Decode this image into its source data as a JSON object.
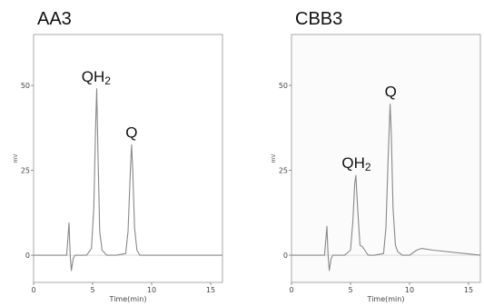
{
  "chart_data": [
    {
      "type": "line",
      "title": "AA3",
      "xlabel": "Time(min)",
      "ylabel": "mV",
      "xlim": [
        0,
        16
      ],
      "ylim": [
        -8,
        65
      ],
      "xticks": [
        0,
        5,
        10,
        15
      ],
      "yticks": [
        0,
        25,
        50
      ],
      "grid": false,
      "annotations": [
        {
          "text": "QH2",
          "x": 5.3,
          "y": 49
        },
        {
          "text": "Q",
          "x": 8.3,
          "y": 32.5
        }
      ],
      "series": [
        {
          "x": [
            0,
            2.8,
            3.0,
            3.1,
            3.2,
            3.35,
            3.5,
            3.8,
            4.5,
            4.9,
            5.1,
            5.25,
            5.35,
            5.45,
            5.6,
            5.8,
            6.2,
            7.0,
            7.8,
            8.0,
            8.2,
            8.3,
            8.4,
            8.55,
            8.75,
            9.0,
            10.0,
            16
          ],
          "y": [
            0,
            0,
            9.5,
            0,
            -4.5,
            -1,
            0,
            0,
            0,
            2,
            14,
            38,
            49,
            30,
            7,
            1.5,
            0,
            0,
            0.5,
            7,
            25,
            32.5,
            25,
            8,
            1.5,
            0,
            0,
            0
          ]
        }
      ]
    },
    {
      "type": "line",
      "title": "CBB3",
      "xlabel": "Time(min)",
      "ylabel": "mV",
      "xlim": [
        0,
        16
      ],
      "ylim": [
        -8,
        65
      ],
      "xticks": [
        0,
        5,
        10,
        15
      ],
      "yticks": [
        0,
        25,
        50
      ],
      "grid": false,
      "annotations": [
        {
          "text": "QH2",
          "x": 5.5,
          "y": 23.5
        },
        {
          "text": "Q",
          "x": 8.4,
          "y": 44.5
        }
      ],
      "series": [
        {
          "x": [
            0,
            2.8,
            3.0,
            3.1,
            3.2,
            3.35,
            3.5,
            3.8,
            4.5,
            5.0,
            5.2,
            5.35,
            5.45,
            5.6,
            5.8,
            6.0,
            6.2,
            6.5,
            7.0,
            7.8,
            8.0,
            8.2,
            8.35,
            8.45,
            8.6,
            8.8,
            9.0,
            9.4,
            10.0,
            10.6,
            11.0,
            12.0,
            16
          ],
          "y": [
            0,
            0,
            8.5,
            0,
            -4.5,
            -1,
            0,
            0,
            0,
            1.5,
            10,
            21,
            23.5,
            14,
            3,
            2.5,
            1.5,
            0,
            0,
            0.5,
            8,
            30,
            44.5,
            36,
            14,
            3,
            1,
            0,
            0,
            1.5,
            2,
            1.5,
            0
          ]
        }
      ]
    }
  ]
}
